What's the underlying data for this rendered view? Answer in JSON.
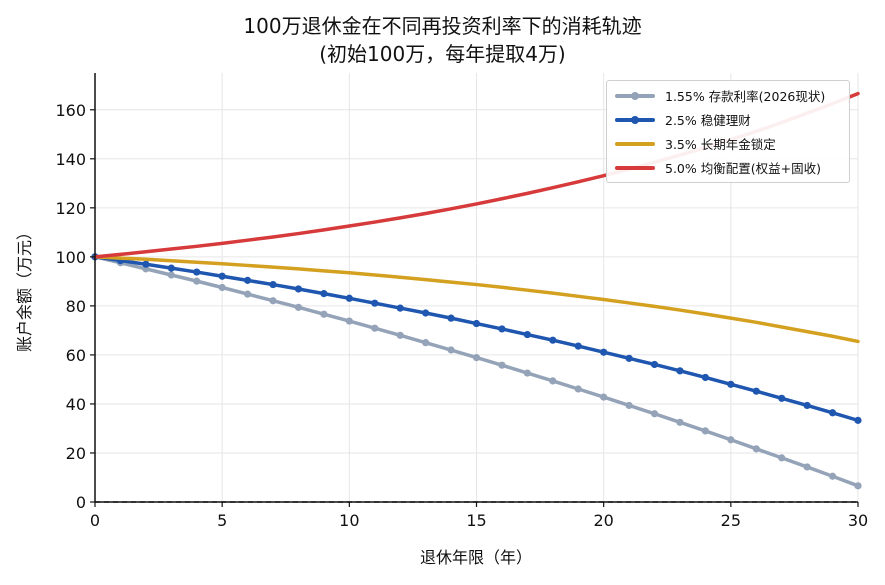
{
  "chart_data": {
    "type": "line",
    "title": "100万退休金在不同再投资利率下的消耗轨迹",
    "subtitle": "(初始100万，每年提取4万)",
    "xlabel": "退休年限（年）",
    "ylabel": "账户余额（万元）",
    "xlim": [
      0,
      30
    ],
    "ylim": [
      0,
      175
    ],
    "xticks": [
      0,
      5,
      10,
      15,
      20,
      25,
      30
    ],
    "yticks": [
      0,
      20,
      40,
      60,
      80,
      100,
      120,
      140,
      160
    ],
    "grid": true,
    "legend_position": "top-right",
    "x": [
      0,
      1,
      2,
      3,
      4,
      5,
      6,
      7,
      8,
      9,
      10,
      11,
      12,
      13,
      14,
      15,
      16,
      17,
      18,
      19,
      20,
      21,
      22,
      23,
      24,
      25,
      26,
      27,
      28,
      29,
      30
    ],
    "series": [
      {
        "name": "1.55% 存款利率(2026现状)",
        "color": "#94a3b8",
        "markers": true,
        "values": [
          100,
          97.6,
          95.1,
          92.6,
          90.1,
          87.5,
          84.8,
          82.1,
          79.4,
          76.6,
          73.8,
          70.9,
          68.0,
          65.0,
          62.0,
          58.9,
          55.8,
          52.6,
          49.4,
          46.1,
          42.8,
          39.4,
          36.0,
          32.5,
          29.0,
          25.4,
          21.7,
          18.0,
          14.3,
          10.5,
          6.6
        ]
      },
      {
        "name": "2.5% 稳健理财",
        "color": "#1e56b0",
        "markers": true,
        "values": [
          100,
          98.5,
          97.0,
          95.4,
          93.8,
          92.1,
          90.4,
          88.7,
          86.9,
          85.0,
          83.1,
          81.1,
          79.1,
          77.1,
          75.0,
          72.8,
          70.6,
          68.3,
          66.0,
          63.6,
          61.1,
          58.6,
          56.1,
          53.5,
          50.8,
          48.0,
          45.2,
          42.3,
          39.4,
          36.4,
          33.3
        ]
      },
      {
        "name": "3.5% 长期年金锁定",
        "color": "#d4a020",
        "markers": false,
        "values": [
          100,
          99.5,
          99.0,
          98.4,
          97.8,
          97.2,
          96.5,
          95.8,
          95.1,
          94.3,
          93.5,
          92.6,
          91.7,
          90.7,
          89.7,
          88.7,
          87.6,
          86.4,
          85.2,
          83.9,
          82.6,
          81.2,
          79.8,
          78.3,
          76.7,
          75.0,
          73.3,
          71.4,
          69.5,
          67.6,
          65.5
        ]
      },
      {
        "name": "5.0% 均衡配置(权益+固收)",
        "color": "#d63a3a",
        "markers": false,
        "values": [
          100,
          101.0,
          102.1,
          103.2,
          104.3,
          105.5,
          106.8,
          108.1,
          109.5,
          111.0,
          112.6,
          114.2,
          115.9,
          117.7,
          119.6,
          121.6,
          123.7,
          125.9,
          128.2,
          130.6,
          133.1,
          135.8,
          138.6,
          141.5,
          144.6,
          147.8,
          151.2,
          154.8,
          158.6,
          162.5,
          166.6
        ]
      }
    ]
  }
}
